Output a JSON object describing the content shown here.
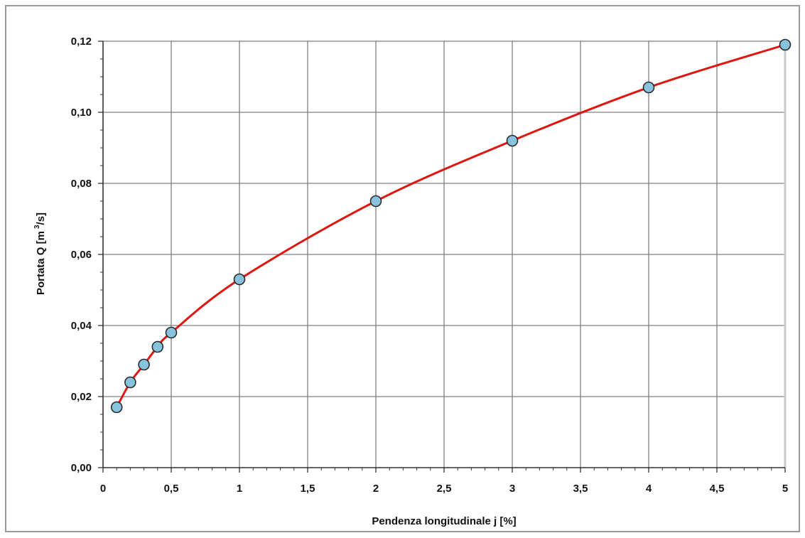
{
  "colors": {
    "background": "#ffffff",
    "frame": "#9a9a9a",
    "grid": "#7f7f7f",
    "axis": "#333333",
    "curve": "#e0150f",
    "marker_fill": "#87c3dc",
    "marker_stroke": "#2b2b2b"
  },
  "chart_data": {
    "type": "scatter",
    "title": "",
    "xlabel": "Pendenza longitudinale j [%]",
    "ylabel": "Portata Q [m³/s]",
    "ylabel_parts": {
      "main": "Portata Q [m",
      "superscript": "3",
      "tail": "/s]"
    },
    "xlim": [
      0,
      5
    ],
    "ylim": [
      0,
      0.12
    ],
    "x_ticks": [
      0,
      0.5,
      1,
      1.5,
      2,
      2.5,
      3,
      3.5,
      4,
      4.5,
      5
    ],
    "x_tick_labels": [
      "0",
      "0,5",
      "1",
      "1,5",
      "2",
      "2,5",
      "3",
      "3,5",
      "4",
      "4,5",
      "5"
    ],
    "y_ticks": [
      0,
      0.02,
      0.04,
      0.06,
      0.08,
      0.1,
      0.12
    ],
    "y_tick_labels": [
      "0,00",
      "0,02",
      "0,04",
      "0,06",
      "0,08",
      "0,10",
      "0,12"
    ],
    "grid": true,
    "legend": "none",
    "series": [
      {
        "style": "smooth line with circle markers",
        "x": [
          0.1,
          0.2,
          0.3,
          0.4,
          0.5,
          1,
          2,
          3,
          4,
          5
        ],
        "y": [
          0.017,
          0.024,
          0.029,
          0.034,
          0.038,
          0.053,
          0.075,
          0.092,
          0.107,
          0.119
        ]
      }
    ]
  }
}
